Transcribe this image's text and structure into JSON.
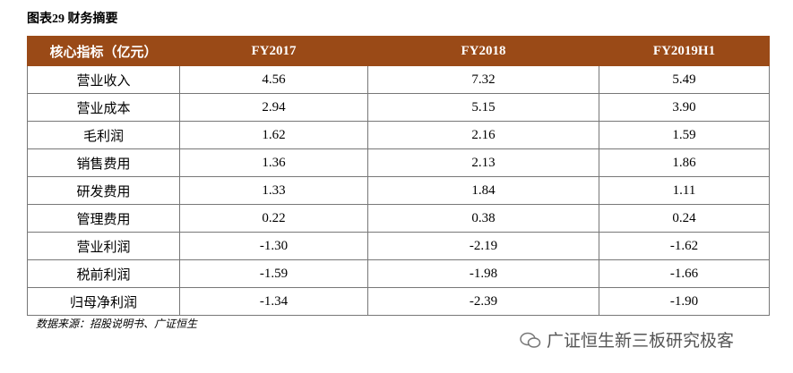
{
  "title": "图表29 财务摘要",
  "table": {
    "header": [
      "核心指标（亿元）",
      "FY2017",
      "FY2018",
      "FY2019H1"
    ],
    "rows": [
      [
        "营业收入",
        "4.56",
        "7.32",
        "5.49"
      ],
      [
        "营业成本",
        "2.94",
        "5.15",
        "3.90"
      ],
      [
        "毛利润",
        "1.62",
        "2.16",
        "1.59"
      ],
      [
        "销售费用",
        "1.36",
        "2.13",
        "1.86"
      ],
      [
        "研发费用",
        "1.33",
        "1.84",
        "1.11"
      ],
      [
        "管理费用",
        "0.22",
        "0.38",
        "0.24"
      ],
      [
        "营业利润",
        "-1.30",
        "-2.19",
        "-1.62"
      ],
      [
        "税前利润",
        "-1.59",
        "-1.98",
        "-1.66"
      ],
      [
        "归母净利润",
        "-1.34",
        "-2.39",
        "-1.90"
      ]
    ]
  },
  "source": "数据来源：招股说明书、广证恒生",
  "watermark": "广证恒生新三板研究极客"
}
